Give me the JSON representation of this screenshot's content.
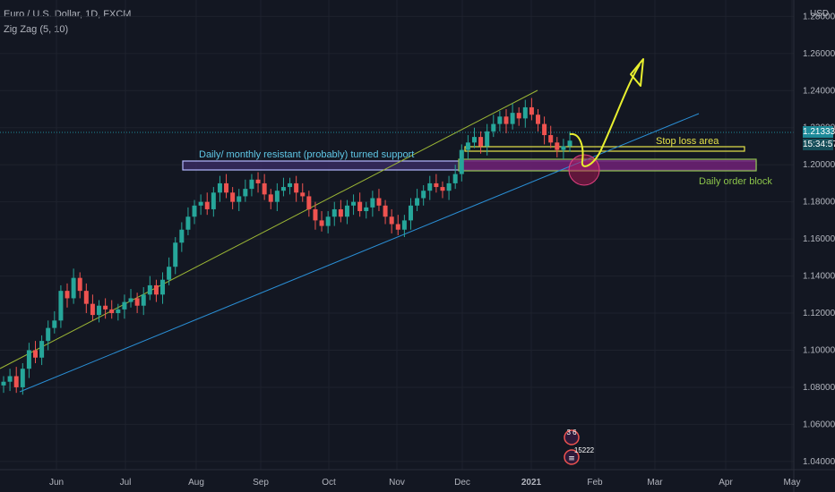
{
  "header": {
    "symbol_line": "Euro / U.S. Dollar, 1D, FXCM",
    "indicator_line": "Zig Zag (5, 10)"
  },
  "price_axis": {
    "currency": "USD",
    "last_price": "1.21333",
    "countdown": "15:34:57"
  },
  "annotations": {
    "support_label": "Daily/ monthly resistant (probably) turned support",
    "stop_loss_label": "Stop loss area",
    "order_block_label": "Daily order block"
  },
  "events": {
    "badge_top": "3 6",
    "badge_bottom": "15222"
  },
  "colors": {
    "background": "#131722",
    "up_candle": "#26a69a",
    "down_candle": "#ef5350",
    "upper_trendline": "#9cb735",
    "lower_trendline": "#2a8fd6",
    "support_zone_border": "#b3b7ff",
    "support_zone_fill": "#3a2c63",
    "order_block_border": "#8bc34a",
    "order_block_fill": "#6b1e6e",
    "stop_loss_box": "#e6e34a",
    "arrow": "#e8ef2f",
    "target_circle": "#c2185b",
    "last_price_tag": "#1d8a99"
  },
  "chart_data": {
    "type": "candlestick",
    "y_ticks": [
      "1.28000",
      "1.26000",
      "1.24000",
      "1.22000",
      "1.20000",
      "1.18000",
      "1.16000",
      "1.14000",
      "1.12000",
      "1.10000",
      "1.08000",
      "1.06000",
      "1.04000"
    ],
    "y_tick_values": [
      1.28,
      1.26,
      1.24,
      1.22,
      1.2,
      1.18,
      1.16,
      1.14,
      1.12,
      1.1,
      1.08,
      1.06,
      1.04
    ],
    "ylim": [
      1.038,
      1.285
    ],
    "x_ticks": [
      "Jun",
      "Jul",
      "Aug",
      "Sep",
      "Oct",
      "Nov",
      "Dec",
      "2021",
      "Feb",
      "Mar",
      "Apr",
      "May"
    ],
    "approx_daily_closes": [
      1.083,
      1.086,
      1.08,
      1.09,
      1.1,
      1.096,
      1.105,
      1.112,
      1.116,
      1.132,
      1.128,
      1.139,
      1.132,
      1.125,
      1.119,
      1.124,
      1.122,
      1.12,
      1.122,
      1.126,
      1.128,
      1.124,
      1.13,
      1.135,
      1.13,
      1.138,
      1.145,
      1.158,
      1.165,
      1.172,
      1.178,
      1.18,
      1.176,
      1.185,
      1.19,
      1.185,
      1.18,
      1.183,
      1.187,
      1.192,
      1.19,
      1.184,
      1.18,
      1.186,
      1.188,
      1.19,
      1.185,
      1.183,
      1.176,
      1.17,
      1.167,
      1.172,
      1.176,
      1.172,
      1.178,
      1.18,
      1.175,
      1.177,
      1.182,
      1.178,
      1.172,
      1.168,
      1.165,
      1.17,
      1.178,
      1.182,
      1.186,
      1.19,
      1.188,
      1.186,
      1.19,
      1.195,
      1.208,
      1.212,
      1.215,
      1.21,
      1.218,
      1.222,
      1.226,
      1.222,
      1.228,
      1.225,
      1.231,
      1.227,
      1.222,
      1.216,
      1.212,
      1.208,
      1.21,
      1.213
    ],
    "trend_levels": {
      "support_zone": [
        1.196,
        1.199
      ],
      "order_block": [
        1.193,
        1.197
      ],
      "stop_loss_area": [
        1.204,
        1.206
      ],
      "current_price": 1.21333
    }
  }
}
